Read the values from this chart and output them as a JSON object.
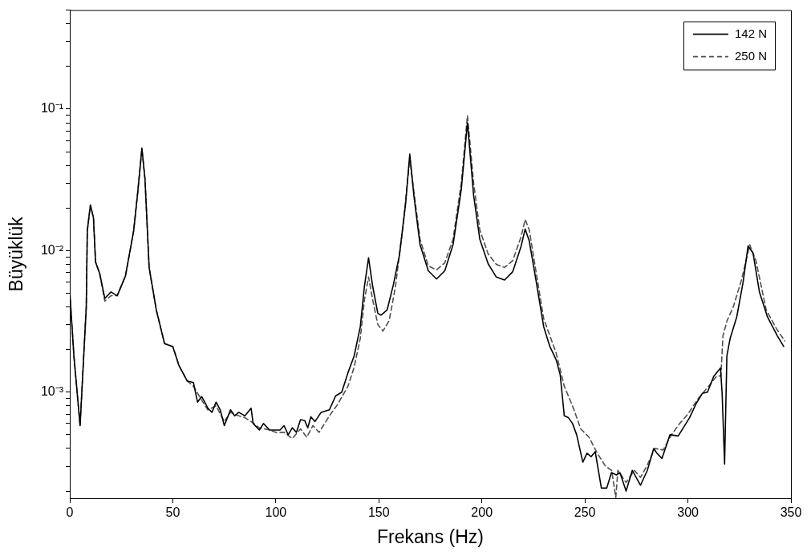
{
  "chart_data": {
    "type": "line",
    "xlabel": "Frekans (Hz)",
    "ylabel": "Büyüklük",
    "log": "y",
    "grid": false,
    "legend": "top right",
    "xlim": [
      0,
      350
    ],
    "xticks": [
      0,
      50,
      100,
      150,
      200,
      250,
      300,
      350
    ],
    "ylim": [
      0.000178,
      0.5
    ],
    "yticks": [
      {
        "value": 0.0002,
        "label": null
      },
      {
        "value": 0.0003,
        "label": null
      },
      {
        "value": 0.0004,
        "label": null
      },
      {
        "value": 0.0005,
        "label": null
      },
      {
        "value": 0.0006,
        "label": null
      },
      {
        "value": 0.0007,
        "label": null
      },
      {
        "value": 0.0008,
        "label": null
      },
      {
        "value": 0.0009,
        "label": null
      },
      {
        "value": 0.001,
        "label": "10⁻³"
      },
      {
        "value": 0.002,
        "label": null
      },
      {
        "value": 0.003,
        "label": null
      },
      {
        "value": 0.004,
        "label": null
      },
      {
        "value": 0.005,
        "label": null
      },
      {
        "value": 0.006,
        "label": null
      },
      {
        "value": 0.007,
        "label": null
      },
      {
        "value": 0.008,
        "label": null
      },
      {
        "value": 0.009,
        "label": null
      },
      {
        "value": 0.01,
        "label": "10⁻²"
      },
      {
        "value": 0.02,
        "label": null
      },
      {
        "value": 0.03,
        "label": null
      },
      {
        "value": 0.04,
        "label": null
      },
      {
        "value": 0.05,
        "label": null
      },
      {
        "value": 0.06,
        "label": null
      },
      {
        "value": 0.07,
        "label": null
      },
      {
        "value": 0.08,
        "label": null
      },
      {
        "value": 0.09,
        "label": null
      },
      {
        "value": 0.1,
        "label": "10⁻¹"
      },
      {
        "value": 0.2,
        "label": null
      },
      {
        "value": 0.3,
        "label": null
      },
      {
        "value": 0.4,
        "label": null
      },
      {
        "value": 0.5,
        "label": null
      }
    ],
    "series": [
      {
        "name": "142 N",
        "color": "#000000",
        "line_style": "solid",
        "x": [
          0,
          2,
          5,
          7,
          8,
          8.5,
          10,
          11.5,
          12.5,
          14.5,
          17,
          20,
          23,
          27,
          31,
          33,
          35,
          36.5,
          38.5,
          42,
          46,
          50,
          53,
          57,
          60,
          62,
          64,
          65.5,
          67,
          69,
          71,
          73,
          75,
          78,
          80,
          82,
          85,
          88,
          89,
          92,
          94,
          97,
          100,
          102,
          104,
          106,
          108,
          110,
          112,
          114,
          115.5,
          117,
          119,
          122,
          126,
          129,
          132,
          135,
          138,
          141,
          143,
          145,
          147,
          149.5,
          151,
          154,
          157,
          160,
          163,
          165,
          167,
          170,
          174,
          178,
          182,
          186,
          190,
          193,
          196,
          199,
          203,
          207,
          211,
          215,
          219,
          221,
          223,
          226,
          230,
          233,
          236,
          238,
          240,
          242,
          244,
          246,
          249,
          251,
          253,
          255,
          258,
          260.6,
          262.9,
          265.3,
          267,
          270,
          273,
          277,
          280.3,
          283.4,
          285,
          287.4,
          291.3,
          295.3,
          300.8,
          304,
          307,
          309.5,
          312.6,
          315.8,
          316.6,
          317.8,
          318.9,
          320.5,
          323.7,
          326.8,
          329.2,
          331.6,
          334.7,
          338.6,
          343.4,
          346.5
        ],
        "values": [
          0.0051,
          0.0018,
          0.00058,
          0.0021,
          0.004,
          0.0138,
          0.021,
          0.017,
          0.0083,
          0.0069,
          0.0046,
          0.0051,
          0.0048,
          0.0066,
          0.0138,
          0.026,
          0.053,
          0.032,
          0.0076,
          0.0038,
          0.0022,
          0.0021,
          0.00154,
          0.0012,
          0.00117,
          0.00085,
          0.00093,
          0.00085,
          0.00077,
          0.00072,
          0.00085,
          0.00075,
          0.00058,
          0.00075,
          0.00068,
          0.00072,
          0.00068,
          0.00077,
          0.0006,
          0.00054,
          0.0006,
          0.00054,
          0.00054,
          0.00054,
          0.00058,
          0.0005,
          0.00056,
          0.00052,
          0.00064,
          0.00063,
          0.00056,
          0.00067,
          0.00062,
          0.00072,
          0.00075,
          0.00094,
          0.001,
          0.00137,
          0.0018,
          0.0029,
          0.0056,
          0.0089,
          0.0056,
          0.0036,
          0.0035,
          0.0038,
          0.0057,
          0.0093,
          0.0216,
          0.048,
          0.0245,
          0.011,
          0.0072,
          0.0063,
          0.0072,
          0.011,
          0.027,
          0.08,
          0.0245,
          0.012,
          0.0081,
          0.0065,
          0.0062,
          0.0071,
          0.0107,
          0.0142,
          0.0117,
          0.0065,
          0.0029,
          0.0021,
          0.0017,
          0.00133,
          0.00068,
          0.00066,
          0.0006,
          0.0005,
          0.00032,
          0.00037,
          0.00035,
          0.00038,
          0.00021,
          0.00021,
          0.00027,
          0.00026,
          0.00027,
          0.0002,
          0.00028,
          0.00022,
          0.00028,
          0.0004,
          0.00037,
          0.00034,
          0.0005,
          0.00049,
          0.00066,
          0.00083,
          0.00098,
          0.001,
          0.0013,
          0.00148,
          0.00098,
          0.00031,
          0.0018,
          0.0024,
          0.0034,
          0.006,
          0.0108,
          0.0096,
          0.0051,
          0.0034,
          0.0025,
          0.0021
        ]
      },
      {
        "name": "250 N",
        "color": "#505050",
        "line_style": "dashed",
        "x": [
          0,
          2,
          5,
          7,
          8,
          8.5,
          10,
          11.5,
          12.5,
          14.5,
          17,
          20,
          23,
          27,
          31,
          33,
          35,
          36.5,
          38.5,
          42,
          46,
          50,
          53,
          57,
          60,
          64,
          67,
          71,
          75,
          78,
          82,
          85,
          88,
          92,
          97,
          100,
          104,
          108,
          112,
          115,
          118,
          121,
          126,
          130,
          135,
          138,
          141,
          143,
          145,
          147,
          149.5,
          152,
          155,
          158,
          162,
          165,
          167,
          170,
          174,
          178,
          182,
          186,
          190,
          193,
          196,
          199,
          203,
          207,
          211,
          215,
          219,
          221,
          223,
          226,
          230,
          236,
          240,
          244,
          248,
          252,
          256,
          260,
          263,
          265,
          266,
          270,
          274,
          277,
          280,
          284,
          288,
          292,
          296,
          300,
          305,
          310,
          314,
          316,
          317,
          319,
          322,
          326,
          330,
          333,
          338,
          343,
          347
        ],
        "values": [
          0.0051,
          0.0018,
          0.00058,
          0.0021,
          0.004,
          0.0138,
          0.021,
          0.017,
          0.0083,
          0.0069,
          0.0044,
          0.0048,
          0.0048,
          0.0066,
          0.0138,
          0.026,
          0.052,
          0.032,
          0.0076,
          0.0038,
          0.0022,
          0.0021,
          0.00154,
          0.0012,
          0.0011,
          0.00088,
          0.00075,
          0.0008,
          0.00062,
          0.00072,
          0.00068,
          0.00066,
          0.00062,
          0.00056,
          0.00054,
          0.00052,
          0.00052,
          0.00047,
          0.00055,
          0.00048,
          0.00058,
          0.00052,
          0.00068,
          0.00082,
          0.0011,
          0.0015,
          0.0024,
          0.0045,
          0.0065,
          0.0045,
          0.003,
          0.0027,
          0.0032,
          0.0055,
          0.016,
          0.045,
          0.026,
          0.012,
          0.0078,
          0.0073,
          0.0082,
          0.012,
          0.03,
          0.09,
          0.03,
          0.014,
          0.0095,
          0.008,
          0.0076,
          0.0085,
          0.0125,
          0.0166,
          0.014,
          0.0075,
          0.0033,
          0.0019,
          0.0011,
          0.0008,
          0.00055,
          0.00048,
          0.00037,
          0.0003,
          0.00028,
          0.00018,
          0.00028,
          0.00023,
          0.00028,
          0.00025,
          0.0003,
          0.0004,
          0.00039,
          0.0005,
          0.0006,
          0.0007,
          0.0009,
          0.0011,
          0.0013,
          0.0013,
          0.0025,
          0.0032,
          0.004,
          0.0062,
          0.011,
          0.0085,
          0.0038,
          0.0028,
          0.0023
        ]
      }
    ]
  }
}
